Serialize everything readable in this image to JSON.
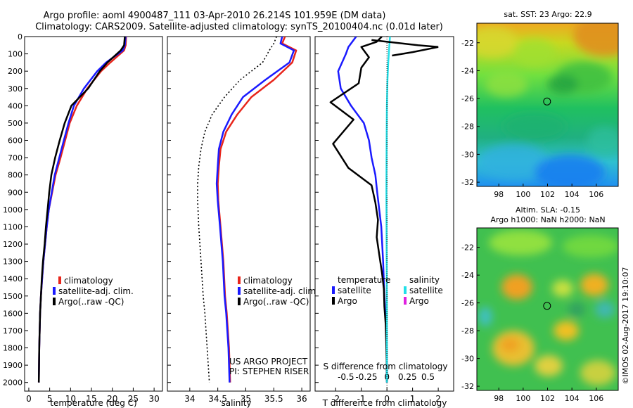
{
  "header": {
    "title_line1": "Argo profile: aoml 4900487_111 03-Apr-2010 26.214S 101.959E (DM data)",
    "title_line2": "Climatology: CARS2009. Satellite-adjusted climatology: synTS_20100404.nc (0.01d later)"
  },
  "colors": {
    "climatology": "#e8251b",
    "satellite": "#1a1aff",
    "argo": "#000000",
    "satellite_salinity_diff": "#22e0e8",
    "argo_salinity_diff": "#e020e0"
  },
  "chart_data": [
    {
      "type": "line",
      "panel": "temperature",
      "xlabel": "temperature (deg C)",
      "ylabel": "",
      "xlim": [
        -1,
        32
      ],
      "ylim": [
        2050,
        0
      ],
      "x_ticks": [
        0,
        5,
        10,
        15,
        20,
        25,
        30
      ],
      "y_ticks": [
        0,
        100,
        200,
        300,
        400,
        500,
        600,
        700,
        800,
        900,
        1000,
        1100,
        1200,
        1300,
        1400,
        1500,
        1600,
        1700,
        1800,
        1900,
        2000
      ],
      "legend": {
        "placement": "lower-left",
        "entries": [
          "climatology",
          "satellite-adj. clim.",
          "Argo(..raw -QC)"
        ]
      },
      "series": [
        {
          "name": "climatology",
          "color": "#e8251b",
          "x": [
            23.3,
            23.2,
            22.8,
            19.5,
            17.3,
            14.0,
            11.5,
            9.8,
            8.7,
            7.6,
            6.4,
            5.6,
            4.8,
            4.3,
            3.9,
            3.5,
            3.2,
            2.9,
            2.7,
            2.5,
            2.4
          ],
          "y": [
            0,
            50,
            80,
            150,
            200,
            300,
            400,
            500,
            600,
            700,
            800,
            900,
            1000,
            1100,
            1200,
            1300,
            1400,
            1500,
            1600,
            1800,
            2000
          ]
        },
        {
          "name": "satellite-adj. clim.",
          "color": "#1a1aff",
          "x": [
            23.2,
            23.0,
            22.5,
            18.5,
            16.4,
            13.2,
            10.8,
            9.5,
            8.4,
            7.3,
            6.2,
            5.5,
            4.8,
            4.3,
            3.9,
            3.5,
            3.2,
            2.9,
            2.7,
            2.5,
            2.4
          ],
          "y": [
            0,
            50,
            80,
            150,
            200,
            300,
            400,
            500,
            600,
            700,
            800,
            900,
            1000,
            1100,
            1200,
            1300,
            1400,
            1500,
            1600,
            1800,
            2000
          ]
        },
        {
          "name": "Argo(..raw -QC)",
          "color": "#000000",
          "x": [
            23.0,
            22.8,
            22.0,
            18.8,
            17.0,
            14.2,
            10.2,
            8.6,
            7.4,
            6.3,
            5.4,
            4.9,
            4.5,
            4.1,
            3.8,
            3.4,
            3.1,
            2.9,
            2.7,
            2.5,
            2.4
          ],
          "y": [
            0,
            50,
            80,
            150,
            200,
            300,
            400,
            500,
            600,
            700,
            800,
            900,
            1000,
            1100,
            1200,
            1300,
            1400,
            1500,
            1600,
            1800,
            2000
          ]
        }
      ]
    },
    {
      "type": "line",
      "panel": "salinity",
      "xlabel": "salinity",
      "ylabel": "",
      "xlim": [
        33.6,
        36.15
      ],
      "ylim": [
        2050,
        0
      ],
      "x_ticks": [
        34,
        34.5,
        35,
        35.5,
        36
      ],
      "x_tick_labels": [
        "34",
        "34.5",
        "35",
        "35.5",
        "36"
      ],
      "legend": {
        "placement": "lower-right",
        "entries": [
          "climatology",
          "satellite-adj. clim.",
          "Argo(..raw -QC)"
        ]
      },
      "annotations": [
        "US ARGO PROJECT",
        "PI: STEPHEN RISER"
      ],
      "series": [
        {
          "name": "climatology",
          "color": "#e8251b",
          "x": [
            35.7,
            35.65,
            35.9,
            35.83,
            35.5,
            35.1,
            34.85,
            34.65,
            34.55,
            34.52,
            34.5,
            34.51,
            34.55,
            34.6,
            34.63,
            34.66,
            34.68,
            34.7,
            34.71,
            34.72
          ],
          "y": [
            0,
            40,
            80,
            150,
            250,
            350,
            450,
            550,
            650,
            750,
            850,
            950,
            1100,
            1300,
            1500,
            1600,
            1700,
            1800,
            1900,
            2000
          ]
        },
        {
          "name": "satellite-adj. clim.",
          "color": "#1a1aff",
          "x": [
            35.65,
            35.62,
            35.86,
            35.78,
            35.35,
            34.95,
            34.75,
            34.6,
            34.52,
            34.5,
            34.48,
            34.5,
            34.54,
            34.59,
            34.62,
            34.65,
            34.67,
            34.69,
            34.7,
            34.71
          ],
          "y": [
            0,
            40,
            80,
            150,
            250,
            350,
            450,
            550,
            650,
            750,
            850,
            950,
            1100,
            1300,
            1500,
            1600,
            1700,
            1800,
            1900,
            2000
          ]
        },
        {
          "name": "Argo(..raw -QC)",
          "color": "#000000",
          "dash": "dotted",
          "x": [
            35.55,
            35.5,
            35.42,
            35.3,
            34.9,
            34.62,
            34.4,
            34.27,
            34.2,
            34.16,
            34.14,
            34.14,
            34.16,
            34.2,
            34.24,
            34.27,
            34.29,
            34.31,
            34.33,
            34.35
          ],
          "y": [
            0,
            40,
            80,
            150,
            250,
            350,
            450,
            550,
            650,
            750,
            850,
            950,
            1100,
            1300,
            1500,
            1600,
            1700,
            1800,
            1900,
            2000
          ]
        }
      ]
    },
    {
      "type": "line",
      "panel": "differences",
      "xlabel": "T difference from climatology",
      "x_ticks": [
        -2,
        -1,
        0,
        1,
        2
      ],
      "x_tick_labels": [
        "-2",
        "-1",
        "0",
        "1",
        "2"
      ],
      "xlim": [
        -2.8,
        2.6
      ],
      "secondary_xlabel": "S difference from climatology",
      "secondary_x_ticks": [
        -0.5,
        -0.25,
        0,
        0.25,
        0.5
      ],
      "secondary_x_tick_labels": [
        "-0.5",
        "-0.25",
        "0",
        "0.25",
        "0.5"
      ],
      "ylim": [
        2050,
        0
      ],
      "legend": {
        "placement": "lower",
        "temperature_title": "temperature",
        "salinity_title": "salinity",
        "temperature_entries": [
          "satellite",
          "Argo"
        ],
        "salinity_entries": [
          "satellite",
          "Argo"
        ]
      },
      "series": [
        {
          "name": "temperature satellite",
          "color": "#1a1aff",
          "x": [
            -1.2,
            -1.5,
            -1.6,
            -1.9,
            -1.8,
            -1.4,
            -0.9,
            -0.7,
            -0.6,
            -0.45,
            -0.38,
            -0.3,
            -0.22,
            -0.15,
            -0.1,
            -0.06,
            -0.03,
            -0.01,
            0.0
          ],
          "y": [
            0,
            60,
            100,
            200,
            300,
            400,
            500,
            600,
            700,
            800,
            900,
            1000,
            1100,
            1300,
            1500,
            1600,
            1700,
            1800,
            2000
          ]
        },
        {
          "name": "temperature Argo",
          "color": "#000000",
          "x": [
            -0.2,
            -0.4,
            -1.0,
            -0.7,
            -1.0,
            -1.1,
            -2.2,
            -1.3,
            -2.1,
            -1.5,
            -0.6,
            -0.45,
            -0.35,
            -0.4,
            -0.3,
            -0.2,
            -0.12,
            -0.1,
            -0.05,
            -0.03,
            -0.01,
            0.0
          ],
          "y": [
            0,
            30,
            60,
            120,
            180,
            270,
            380,
            480,
            620,
            760,
            860,
            960,
            1060,
            1160,
            1260,
            1360,
            1460,
            1560,
            1660,
            1760,
            1880,
            2000
          ]
        },
        {
          "name": "salinity satellite",
          "color": "#22e0e8",
          "x": [
            0.12,
            0.09,
            0.05,
            0.02,
            0.0,
            -0.01,
            -0.015,
            -0.02,
            -0.015,
            -0.01,
            0.0,
            0.0
          ],
          "y": [
            0,
            60,
            150,
            250,
            400,
            550,
            700,
            900,
            1100,
            1300,
            1600,
            2000
          ]
        },
        {
          "name": "salinity Argo",
          "color": "#e020e0",
          "x": [],
          "y": []
        }
      ],
      "spike_series": {
        "name": "near-surface Argo T difference",
        "color": "#000000",
        "x": [
          -0.6,
          1.2,
          2.0,
          1.0,
          0.2
        ],
        "y": [
          20,
          50,
          60,
          90,
          110
        ]
      }
    },
    {
      "type": "heatmap",
      "panel": "sst_map",
      "title": "sat. SST: 23 Argo: 22.9",
      "x_ticks": [
        98,
        100,
        102,
        104,
        106
      ],
      "y_ticks": [
        -22,
        -24,
        -26,
        -28,
        -30,
        -32
      ],
      "xlim": [
        96.2,
        107.8
      ],
      "ylim": [
        -32.3,
        -20.6
      ],
      "marker": {
        "lon": 101.959,
        "lat": -26.214
      }
    },
    {
      "type": "heatmap",
      "panel": "sla_map",
      "title_line1": "Altim. SLA: -0.15",
      "title_line2": "Argo h1000: NaN h2000: NaN",
      "x_ticks": [
        98,
        100,
        102,
        104,
        106
      ],
      "y_ticks": [
        -22,
        -24,
        -26,
        -28,
        -30,
        -32
      ],
      "xlim": [
        96.2,
        107.8
      ],
      "ylim": [
        -32.3,
        -20.6
      ],
      "marker": {
        "lon": 101.959,
        "lat": -26.214
      }
    }
  ],
  "footer": {
    "credit": "©IMOS 02-Aug-2017 19:10:07"
  }
}
